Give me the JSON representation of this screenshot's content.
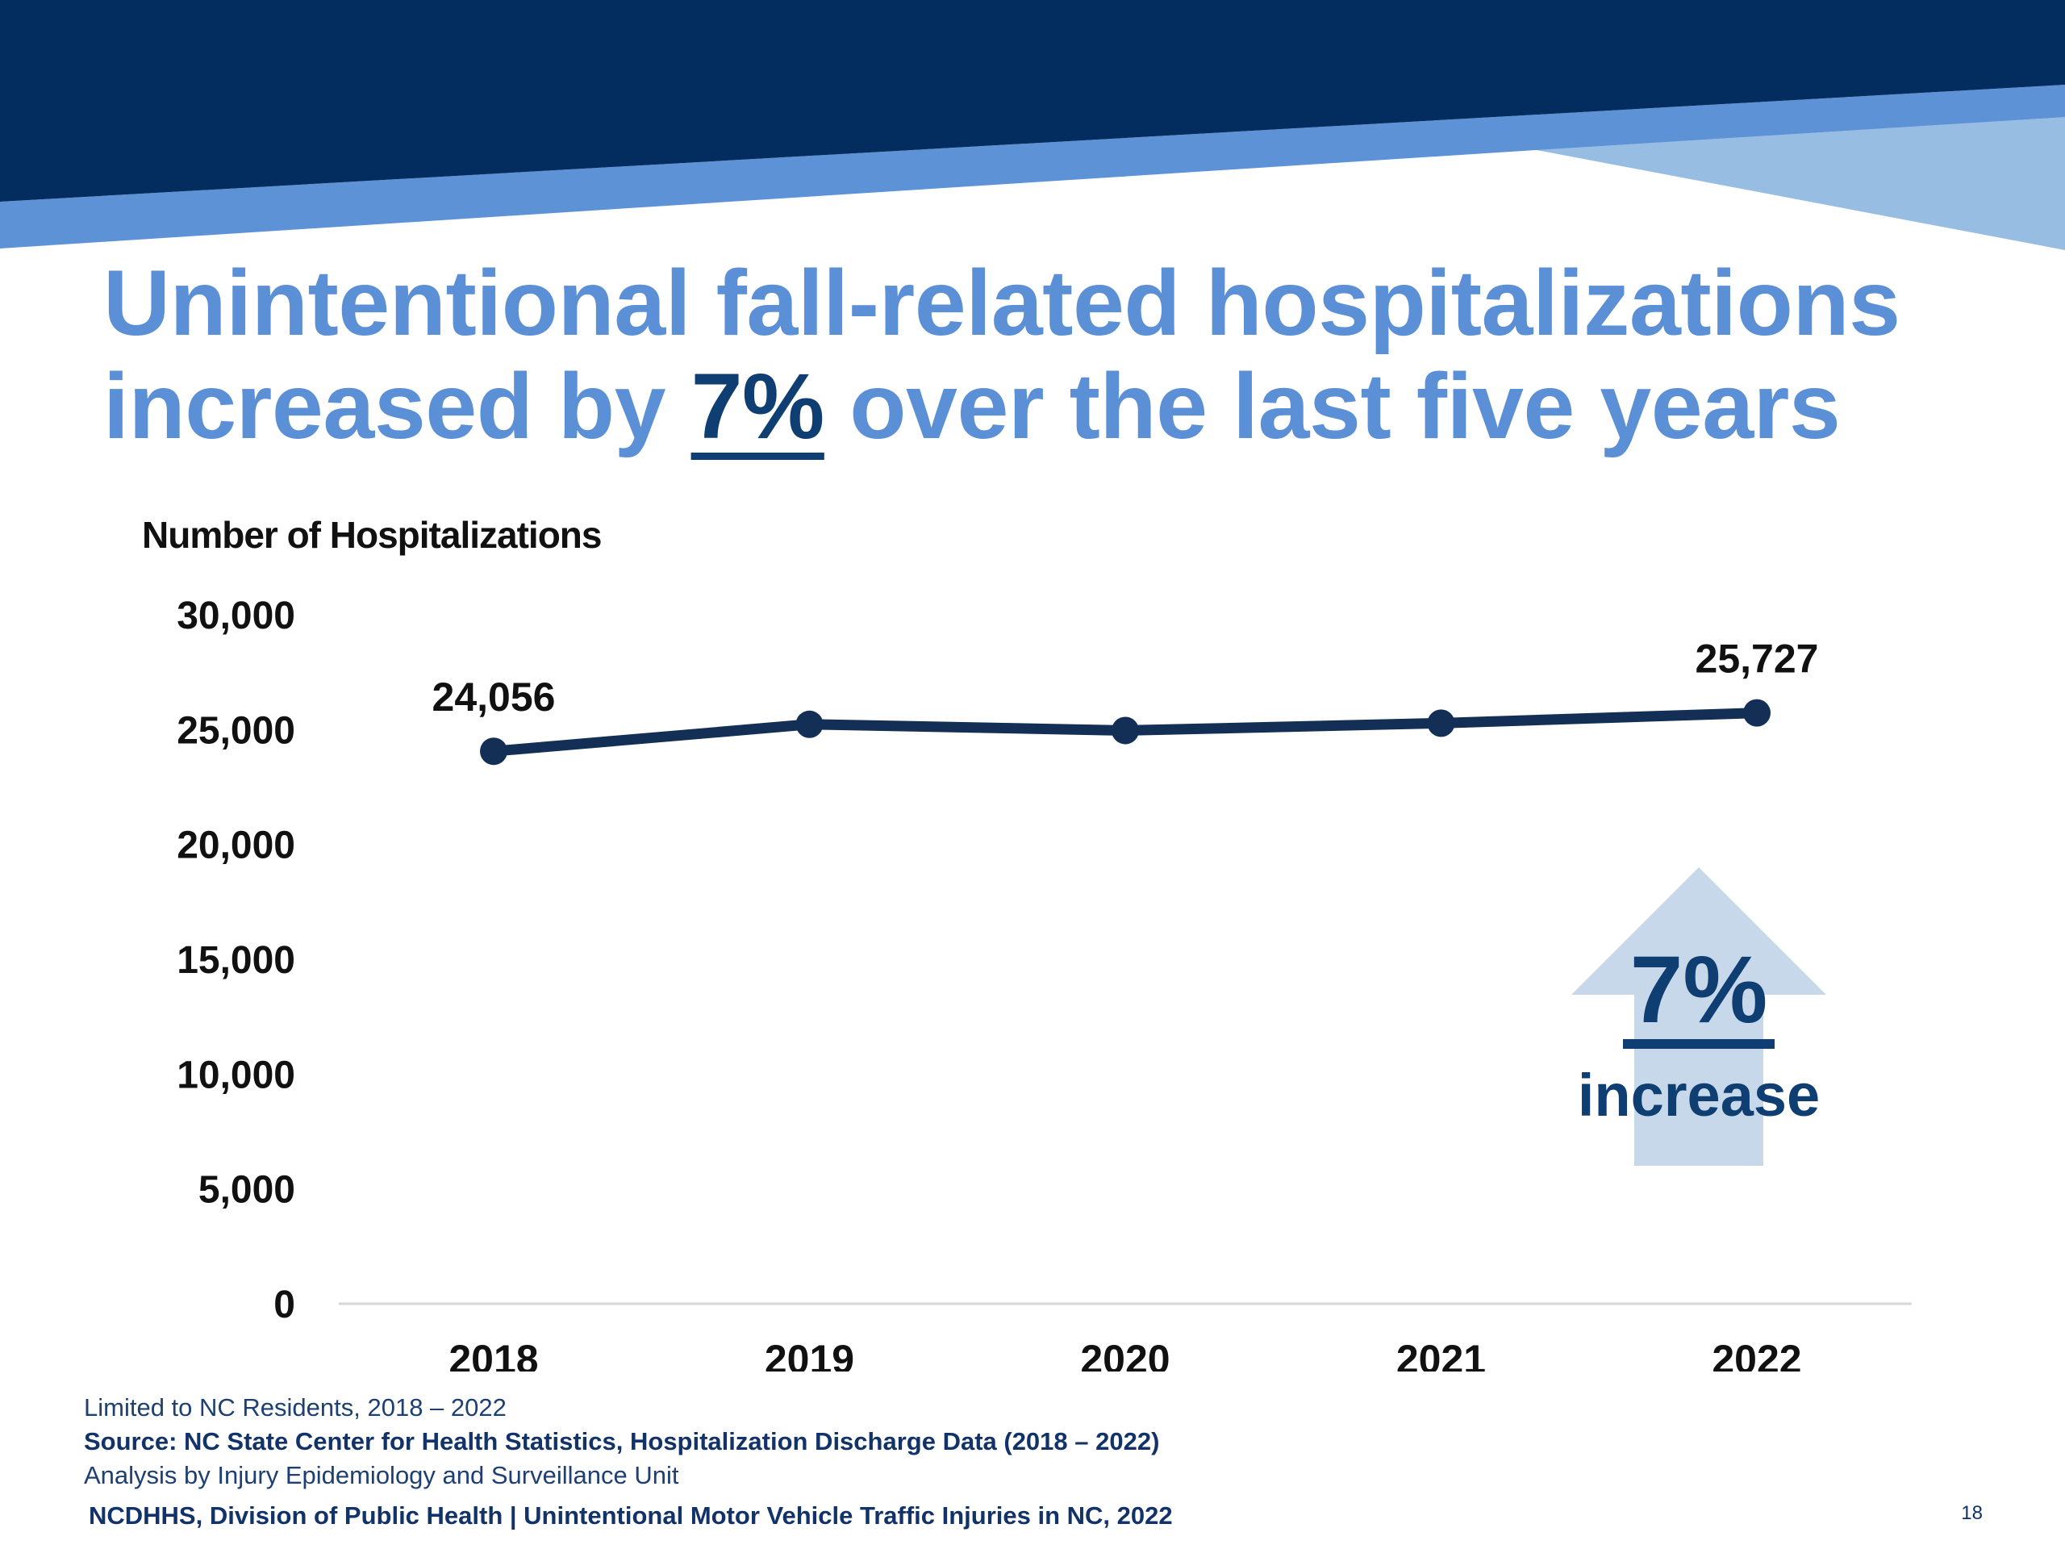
{
  "slide": {
    "title_part1": "Unintentional fall-related hospitalizations",
    "title_part2": "increased by",
    "title_highlight": "7%",
    "title_part3": "over the last five years",
    "callout": {
      "value": "7%",
      "label": "increase"
    },
    "notes": {
      "scope": "Limited to NC Residents, 2018 – 2022",
      "source": "Source: NC State Center for Health Statistics, Hospitalization Discharge Data (2018 – 2022)",
      "analysis": "Analysis by Injury Epidemiology and Surveillance Unit"
    },
    "footer": "NCDHHS, Division of Public Health | Unintentional Motor Vehicle Traffic Injuries in NC, 2022",
    "page_number": "18"
  },
  "colors": {
    "banner_dark": "#032d5e",
    "banner_mid": "#5d93d6",
    "banner_light": "#97bde3",
    "title": "#5b8fd6",
    "accent": "#0f3e73",
    "line": "#132f55",
    "arrow": "#c7d8ea",
    "axis": "#d6d6d6"
  },
  "chart_data": {
    "type": "line",
    "ylabel": "Number of Hospitalizations",
    "xlabel": "",
    "categories": [
      "2018",
      "2019",
      "2020",
      "2021",
      "2022"
    ],
    "series": [
      {
        "values": [
          24056,
          25230,
          24960,
          25280,
          25727
        ]
      }
    ],
    "data_labels": [
      {
        "index": 0,
        "text": "24,056"
      },
      {
        "index": 4,
        "text": "25,727"
      }
    ],
    "ylim": [
      0,
      30000
    ],
    "yticks": [
      0,
      5000,
      10000,
      15000,
      20000,
      25000,
      30000
    ],
    "ytick_labels": [
      "0",
      "5,000",
      "10,000",
      "15,000",
      "20,000",
      "25,000",
      "30,000"
    ],
    "grid": false,
    "legend": "none"
  }
}
